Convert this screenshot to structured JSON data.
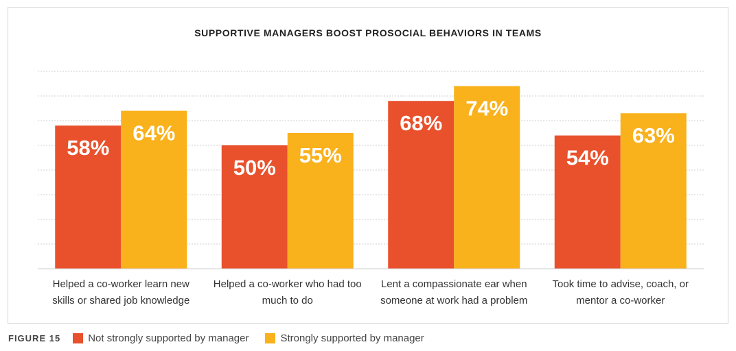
{
  "figure_label": "FIGURE 15",
  "colors": {
    "series_a": "#e8512c",
    "series_b": "#f9b11c",
    "grid": "#cfcfcf"
  },
  "chart_data": {
    "type": "bar",
    "title": "SUPPORTIVE MANAGERS BOOST PROSOCIAL BEHAVIORS IN TEAMS",
    "categories": [
      "Helped a co-worker learn new skills or shared job knowledge",
      "Helped a co-worker who had too much to do",
      "Lent a compassionate ear when someone at work had a problem",
      "Took time to advise, coach, or mentor a co-worker"
    ],
    "series": [
      {
        "name": "Not strongly supported by manager",
        "values": [
          58,
          50,
          68,
          54
        ],
        "labels": [
          "58%",
          "50%",
          "68%",
          "54%"
        ]
      },
      {
        "name": "Strongly supported by manager",
        "values": [
          64,
          55,
          74,
          63
        ],
        "labels": [
          "64%",
          "55%",
          "74%",
          "63%"
        ]
      }
    ],
    "ylim": [
      0,
      80
    ],
    "grid": true,
    "legend_position": "bottom-left"
  }
}
